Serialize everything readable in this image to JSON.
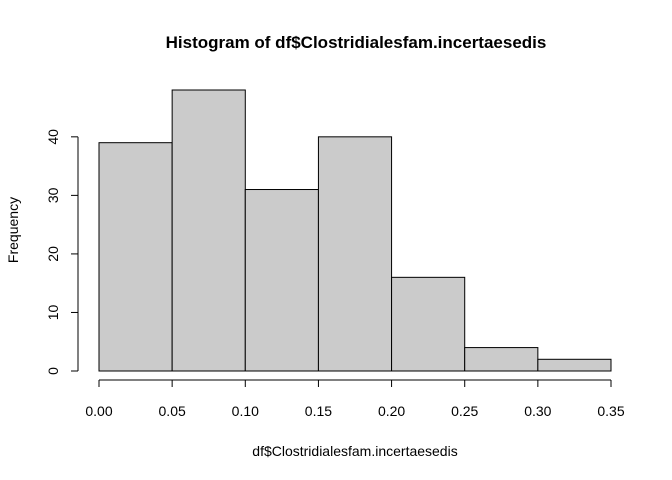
{
  "chart_data": {
    "type": "bar",
    "title": "Histogram of df$Clostridialesfam.incertaesedis",
    "xlabel": "df$Clostridialesfam.incertaesedis",
    "ylabel": "Frequency",
    "bins": [
      {
        "start": 0.0,
        "end": 0.05,
        "count": 39
      },
      {
        "start": 0.05,
        "end": 0.1,
        "count": 48
      },
      {
        "start": 0.1,
        "end": 0.15,
        "count": 31
      },
      {
        "start": 0.15,
        "end": 0.2,
        "count": 40
      },
      {
        "start": 0.2,
        "end": 0.25,
        "count": 16
      },
      {
        "start": 0.25,
        "end": 0.3,
        "count": 4
      },
      {
        "start": 0.3,
        "end": 0.35,
        "count": 2
      }
    ],
    "xlim": [
      0,
      0.35
    ],
    "ylim": [
      0,
      48
    ],
    "x_ticks": [
      "0.00",
      "0.05",
      "0.10",
      "0.15",
      "0.20",
      "0.25",
      "0.30",
      "0.35"
    ],
    "y_ticks": [
      "0",
      "10",
      "20",
      "30",
      "40"
    ],
    "bar_color": "#cbcbcb",
    "grid": false
  }
}
